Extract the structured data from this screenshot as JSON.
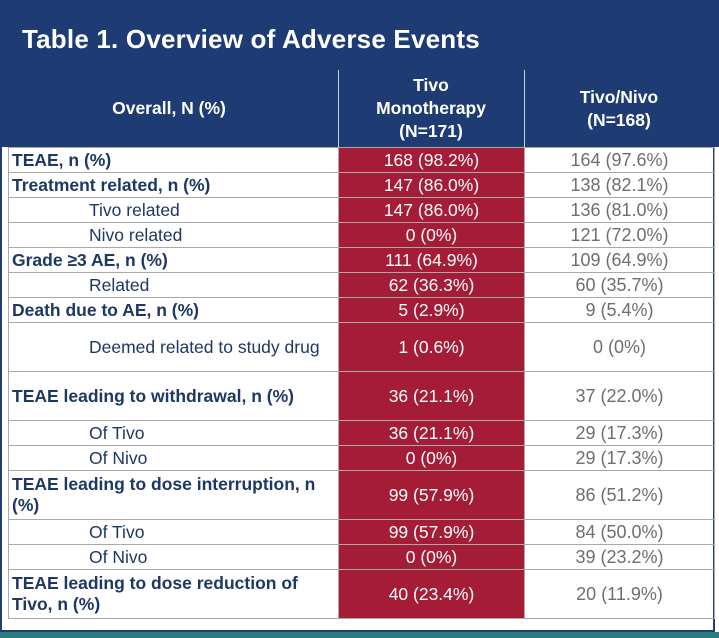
{
  "title": "Table 1. Overview of Adverse Events",
  "columns": {
    "overall": "Overall, N (%)",
    "tivo_line1": "Tivo",
    "tivo_line2": "Monotherapy",
    "tivo_line3": "(N=171)",
    "tivonivo_line1": "Tivo/Nivo",
    "tivonivo_line2": "(N=168)"
  },
  "rows": [
    {
      "label": "TEAE, n (%)",
      "tivo": "168 (98.2%)",
      "tivonivo": "164 (97.6%)"
    },
    {
      "label": "Treatment related, n (%)",
      "tivo": "147 (86.0%)",
      "tivonivo": "138 (82.1%)"
    },
    {
      "label": "Tivo related",
      "tivo": "147 (86.0%)",
      "tivonivo": "136 (81.0%)"
    },
    {
      "label": "Nivo related",
      "tivo": "0 (0%)",
      "tivonivo": "121 (72.0%)"
    },
    {
      "label": "Grade ≥3 AE, n (%)",
      "tivo": "111 (64.9%)",
      "tivonivo": "109 (64.9%)"
    },
    {
      "label": "Related",
      "tivo": "62 (36.3%)",
      "tivonivo": "60 (35.7%)"
    },
    {
      "label": "Death due to AE, n (%)",
      "tivo": "5 (2.9%)",
      "tivonivo": "9 (5.4%)"
    },
    {
      "label": "Deemed related to study drug",
      "tivo": "1 (0.6%)",
      "tivonivo": "0 (0%)"
    },
    {
      "label": "TEAE leading to withdrawal, n (%)",
      "tivo": "36 (21.1%)",
      "tivonivo": "37 (22.0%)"
    },
    {
      "label": "Of Tivo",
      "tivo": "36 (21.1%)",
      "tivonivo": "29 (17.3%)"
    },
    {
      "label": "Of Nivo",
      "tivo": "0 (0%)",
      "tivonivo": "29 (17.3%)"
    },
    {
      "label": "TEAE leading to dose interruption, n (%)",
      "tivo": "99 (57.9%)",
      "tivonivo": "86 (51.2%)"
    },
    {
      "label": "Of Tivo",
      "tivo": "99 (57.9%)",
      "tivonivo": "84 (50.0%)"
    },
    {
      "label": "Of Nivo",
      "tivo": "0 (0%)",
      "tivonivo": "39 (23.2%)"
    },
    {
      "label": "TEAE leading to dose reduction of Tivo, n (%)",
      "tivo": "40 (23.4%)",
      "tivonivo": "20 (11.9%)"
    }
  ]
}
